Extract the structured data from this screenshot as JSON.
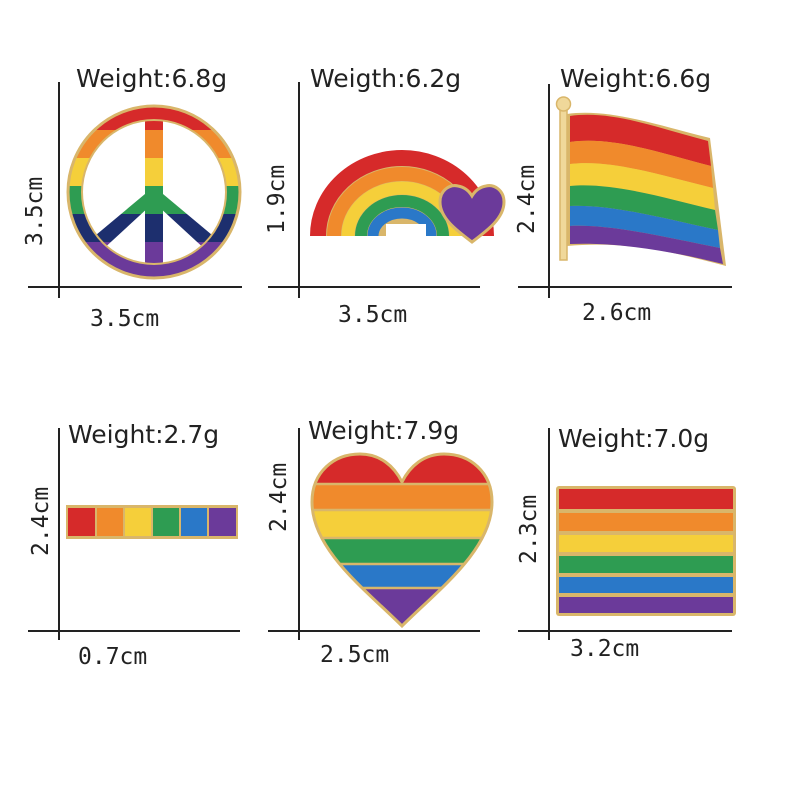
{
  "colors": {
    "red": "#d62a2a",
    "orange": "#f08a2c",
    "yellow": "#f5cf3a",
    "green": "#2e9c52",
    "blue": "#2a78c8",
    "navy": "#1d2f6e",
    "purple": "#6b3a9a",
    "gold": "#d9b66a",
    "axis": "#222222"
  },
  "pins": [
    {
      "shape": "peace-sign",
      "weight": "Weight:6.8g",
      "height_label": "3.5cm",
      "width_label": "3.5cm"
    },
    {
      "shape": "rainbow-heart",
      "weight": "Weigth:6.2g",
      "height_label": "1.9cm",
      "width_label": "3.5cm"
    },
    {
      "shape": "waving-flag",
      "weight": "Weight:6.6g",
      "height_label": "2.4cm",
      "width_label": "2.6cm"
    },
    {
      "shape": "bar",
      "weight": "Weight:2.7g",
      "height_label": "2.4cm",
      "width_label": "0.7cm"
    },
    {
      "shape": "heart",
      "weight": "Weight:7.9g",
      "height_label": "2.4cm",
      "width_label": "2.5cm"
    },
    {
      "shape": "flat-flag",
      "weight": "Weight:7.0g",
      "height_label": "2.3cm",
      "width_label": "3.2cm"
    }
  ]
}
